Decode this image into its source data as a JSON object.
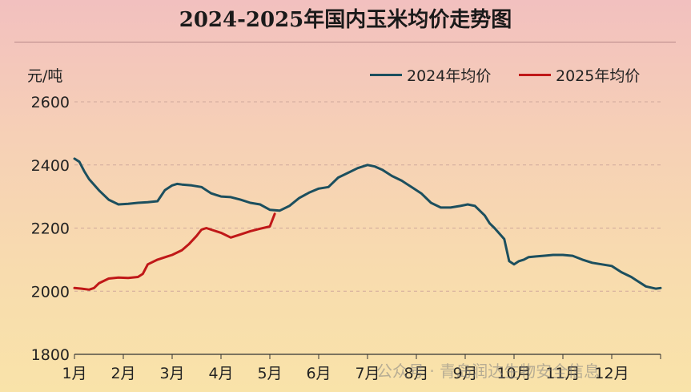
{
  "chart_data": {
    "type": "line",
    "title": "2024-2025年国内玉米均价走势图",
    "ylabel": "元/吨",
    "ylim": [
      1800,
      2600
    ],
    "yticks": [
      "1800",
      "2000",
      "2200",
      "2400",
      "2600"
    ],
    "x_labels": [
      "1月",
      "2月",
      "3月",
      "4月",
      "5月",
      "6月",
      "7月",
      "8月",
      "9月",
      "10月",
      "11月",
      "12月"
    ],
    "grid": "horizontal dashed",
    "legend_position": "top-right",
    "series": [
      {
        "name": "2024年均价",
        "color": "#1c4f5e",
        "x": [
          1.0,
          1.1,
          1.2,
          1.3,
          1.5,
          1.7,
          1.9,
          2.1,
          2.3,
          2.5,
          2.7,
          2.85,
          3.0,
          3.1,
          3.2,
          3.4,
          3.6,
          3.8,
          3.9,
          4.0,
          4.2,
          4.4,
          4.6,
          4.8,
          5.0,
          5.2,
          5.4,
          5.6,
          5.8,
          6.0,
          6.2,
          6.4,
          6.6,
          6.8,
          7.0,
          7.15,
          7.3,
          7.5,
          7.7,
          7.9,
          8.1,
          8.3,
          8.5,
          8.7,
          8.9,
          9.05,
          9.2,
          9.4,
          9.5,
          9.6,
          9.8,
          9.9,
          10.0,
          10.1,
          10.2,
          10.3,
          10.45,
          10.6,
          10.8,
          11.0,
          11.2,
          11.4,
          11.6,
          11.8,
          12.0,
          12.2,
          12.4,
          12.5,
          12.7,
          12.9,
          13.0
        ],
        "y": [
          2420,
          2410,
          2380,
          2355,
          2320,
          2290,
          2275,
          2277,
          2280,
          2282,
          2285,
          2320,
          2335,
          2340,
          2338,
          2335,
          2330,
          2310,
          2305,
          2300,
          2298,
          2290,
          2280,
          2275,
          2258,
          2255,
          2270,
          2295,
          2312,
          2325,
          2330,
          2360,
          2375,
          2390,
          2400,
          2395,
          2385,
          2365,
          2350,
          2330,
          2310,
          2280,
          2265,
          2265,
          2270,
          2275,
          2270,
          2240,
          2215,
          2200,
          2165,
          2095,
          2085,
          2095,
          2100,
          2108,
          2110,
          2112,
          2115,
          2115,
          2112,
          2100,
          2090,
          2085,
          2080,
          2060,
          2045,
          2035,
          2015,
          2008,
          2010
        ]
      },
      {
        "name": "2025年均价",
        "color": "#c01818",
        "x": [
          1.0,
          1.15,
          1.3,
          1.4,
          1.5,
          1.7,
          1.9,
          2.1,
          2.3,
          2.4,
          2.5,
          2.7,
          2.9,
          3.0,
          3.2,
          3.35,
          3.5,
          3.6,
          3.7,
          3.8,
          4.0,
          4.2,
          4.4,
          4.6,
          4.8,
          5.0,
          5.1
        ],
        "y": [
          2010,
          2008,
          2005,
          2010,
          2025,
          2040,
          2043,
          2042,
          2045,
          2055,
          2085,
          2100,
          2110,
          2115,
          2130,
          2150,
          2175,
          2195,
          2200,
          2195,
          2185,
          2170,
          2180,
          2190,
          2198,
          2205,
          2245
        ]
      }
    ]
  },
  "y_unit_label": "元/吨",
  "watermark": "公众号 · 青岛润达生物安全信息"
}
